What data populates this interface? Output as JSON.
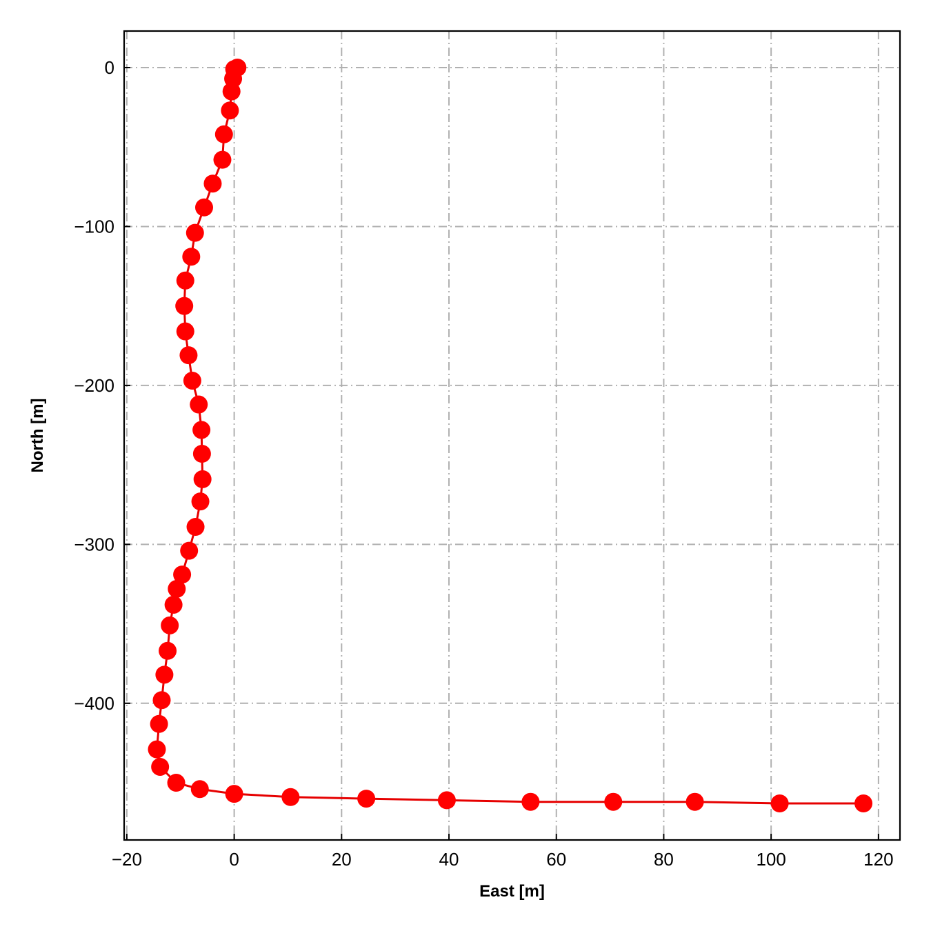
{
  "chart_data": {
    "type": "line",
    "title": "",
    "xlabel": "East [m]",
    "ylabel": "North [m]",
    "xlim": [
      -20.5,
      124
    ],
    "ylim": [
      -486,
      23
    ],
    "xticks": [
      -20,
      0,
      20,
      40,
      60,
      80,
      100,
      120
    ],
    "yticks": [
      0,
      -100,
      -200,
      -300,
      -400
    ],
    "grid": true,
    "grid_style": "dash-dot",
    "line_color": "#e60000",
    "marker_color": "#ff0000",
    "grid_color": "#b0b0b0",
    "legend": "none",
    "series": [
      {
        "marker": "circle",
        "x": [
          0.6,
          0.0,
          -0.2,
          -0.5,
          -0.8,
          -1.9,
          -2.2,
          -4.0,
          -5.6,
          -7.3,
          -8.0,
          -9.1,
          -9.3,
          -9.1,
          -8.5,
          -7.8,
          -6.6,
          -6.1,
          -6.0,
          -5.9,
          -6.3,
          -7.2,
          -8.4,
          -9.7,
          -10.7,
          -11.3,
          -12.0,
          -12.4,
          -13.0,
          -13.5,
          -14.0,
          -14.4,
          -13.8,
          -10.8,
          -6.4,
          0.0,
          10.5,
          24.6,
          39.6,
          55.2,
          70.6,
          85.8,
          101.6,
          117.2
        ],
        "y": [
          0,
          -1,
          -7,
          -15,
          -27,
          -42,
          -58,
          -73,
          -88,
          -104,
          -119,
          -134,
          -150,
          -166,
          -181,
          -197,
          -212,
          -228,
          -243,
          -259,
          -273,
          -289,
          -304,
          -319,
          -328,
          -338,
          -351,
          -367,
          -382,
          -398,
          -413,
          -429,
          -440,
          -450,
          -454,
          -457,
          -459,
          -460,
          -461,
          -462,
          -462,
          -462,
          -463,
          -463
        ]
      }
    ]
  }
}
